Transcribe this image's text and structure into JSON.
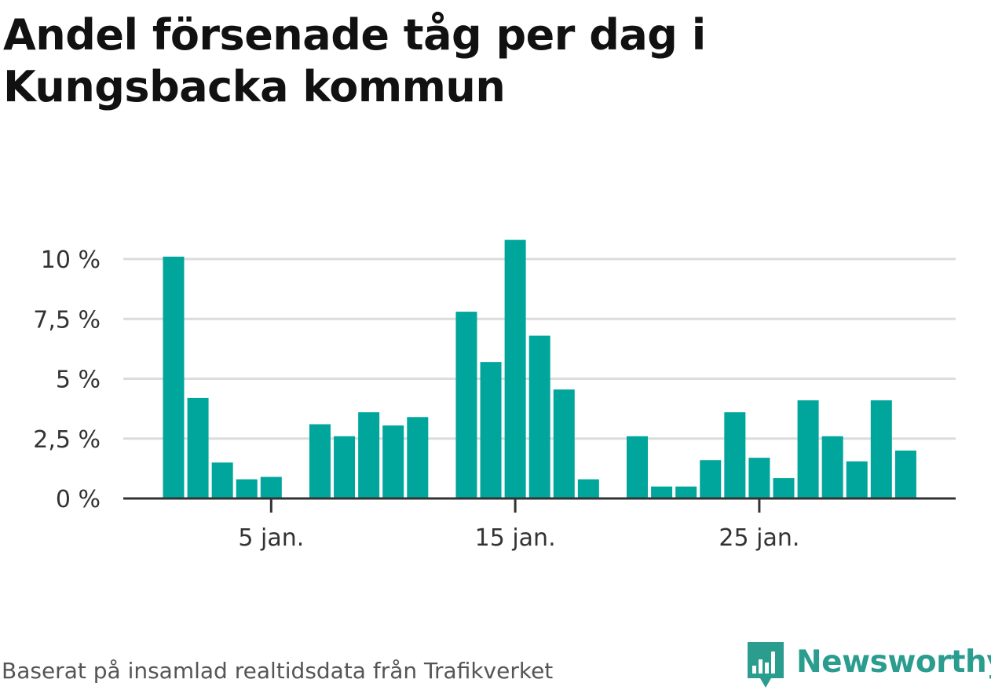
{
  "title": "Andel försenade tåg per dag i Kungsbacka kommun",
  "source": "Baserat på insamlad realtidsdata från Trafikverket",
  "brand": {
    "name": "Newsworthy",
    "icon": "bar-chart-speech-bubble-icon"
  },
  "colors": {
    "bar": "#00a59b",
    "grid": "#dcdcdc",
    "axis": "#333333",
    "brand": "#2a9d8f"
  },
  "chart_data": {
    "type": "bar",
    "x_unit": "day of January",
    "x": [
      1,
      2,
      3,
      4,
      5,
      6,
      7,
      8,
      9,
      10,
      11,
      12,
      13,
      14,
      15,
      16,
      17,
      18,
      19,
      20,
      21,
      22,
      23,
      24,
      25,
      26,
      27,
      28,
      29,
      30,
      31
    ],
    "values": [
      10.1,
      4.2,
      1.5,
      0.8,
      0.9,
      null,
      3.1,
      2.6,
      3.6,
      3.05,
      3.4,
      null,
      7.8,
      5.7,
      10.8,
      6.8,
      4.55,
      0.8,
      null,
      2.6,
      0.5,
      0.5,
      1.6,
      3.6,
      1.7,
      0.85,
      4.1,
      2.6,
      1.55,
      4.1,
      2.0
    ],
    "ylim": [
      0,
      10
    ],
    "yticks": [
      0,
      2.5,
      5,
      7.5,
      10
    ],
    "ytick_labels": [
      "0 %",
      "2,5 %",
      "5 %",
      "7,5 %",
      "10 %"
    ],
    "xticks": [
      5,
      15,
      25
    ],
    "xtick_labels": [
      "5 jan.",
      "15 jan.",
      "25 jan."
    ],
    "grid": true,
    "legend": "none",
    "xlabel": "",
    "ylabel": ""
  }
}
